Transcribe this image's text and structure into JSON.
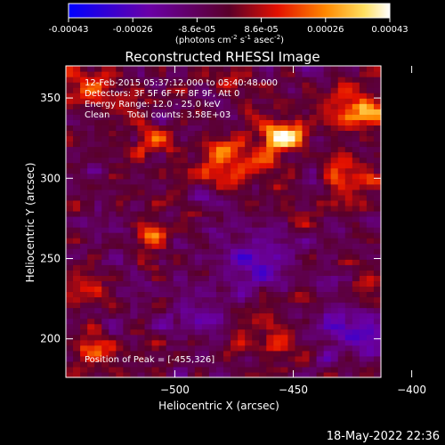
{
  "chart_data": {
    "type": "heatmap",
    "title": "Reconstructed RHESSI Image",
    "xlabel": "Heliocentric X (arcsec)",
    "ylabel": "Heliocentric Y (arcsec)",
    "xlim": [
      -546,
      -413
    ],
    "ylim": [
      176,
      370
    ],
    "xticks": [
      -500,
      -450,
      -400
    ],
    "yticks": [
      200,
      250,
      300,
      350
    ],
    "colorbar": {
      "range": [
        -0.00043,
        0.00043
      ],
      "ticks": [
        "-0.00043",
        "-0.00026",
        "-8.6e-05",
        "8.6e-05",
        "0.00026",
        "0.00043"
      ],
      "label": "(photons cm",
      "label_exp1": "-2",
      "label_mid": " s",
      "label_exp2": "-1",
      "label_mid2": " asec",
      "label_exp3": "-2",
      "label_end": ")"
    },
    "annotations": {
      "time": "12-Feb-2015 05:37:12.000 to 05:40:48.000",
      "detectors": "Detectors: 3F 5F 6F 7F 8F 9F, Att 0",
      "energy": "Energy Range: 12.0 - 25.0 keV",
      "algorithm": "Clean",
      "counts": "Total counts: 3.58E+03",
      "peak": "Position of Peak = [-455,326]"
    },
    "peak": {
      "x": -455,
      "y": 326
    },
    "hotspots": [
      {
        "x": -455,
        "y": 326,
        "intensity": 1.0,
        "sigma": 6
      },
      {
        "x": -475,
        "y": 310,
        "intensity": 0.55,
        "sigma": 10
      },
      {
        "x": -425,
        "y": 345,
        "intensity": 0.55,
        "sigma": 7
      },
      {
        "x": -510,
        "y": 265,
        "intensity": 0.6,
        "sigma": 5
      },
      {
        "x": -510,
        "y": 325,
        "intensity": 0.5,
        "sigma": 6
      },
      {
        "x": -425,
        "y": 300,
        "intensity": 0.45,
        "sigma": 8
      },
      {
        "x": -418,
        "y": 340,
        "intensity": 0.5,
        "sigma": 6
      },
      {
        "x": -535,
        "y": 355,
        "intensity": 0.4,
        "sigma": 7
      },
      {
        "x": -540,
        "y": 235,
        "intensity": 0.4,
        "sigma": 6
      },
      {
        "x": -535,
        "y": 195,
        "intensity": 0.4,
        "sigma": 7
      },
      {
        "x": -460,
        "y": 200,
        "intensity": 0.35,
        "sigma": 8
      },
      {
        "x": -418,
        "y": 230,
        "intensity": 0.35,
        "sigma": 7
      }
    ],
    "coldspots": [
      {
        "x": -470,
        "y": 250,
        "intensity": 0.45,
        "sigma": 14
      },
      {
        "x": -425,
        "y": 205,
        "intensity": 0.55,
        "sigma": 12
      },
      {
        "x": -490,
        "y": 215,
        "intensity": 0.3,
        "sigma": 10
      }
    ]
  },
  "footer": {
    "timestamp": "18-May-2022 22:36"
  }
}
